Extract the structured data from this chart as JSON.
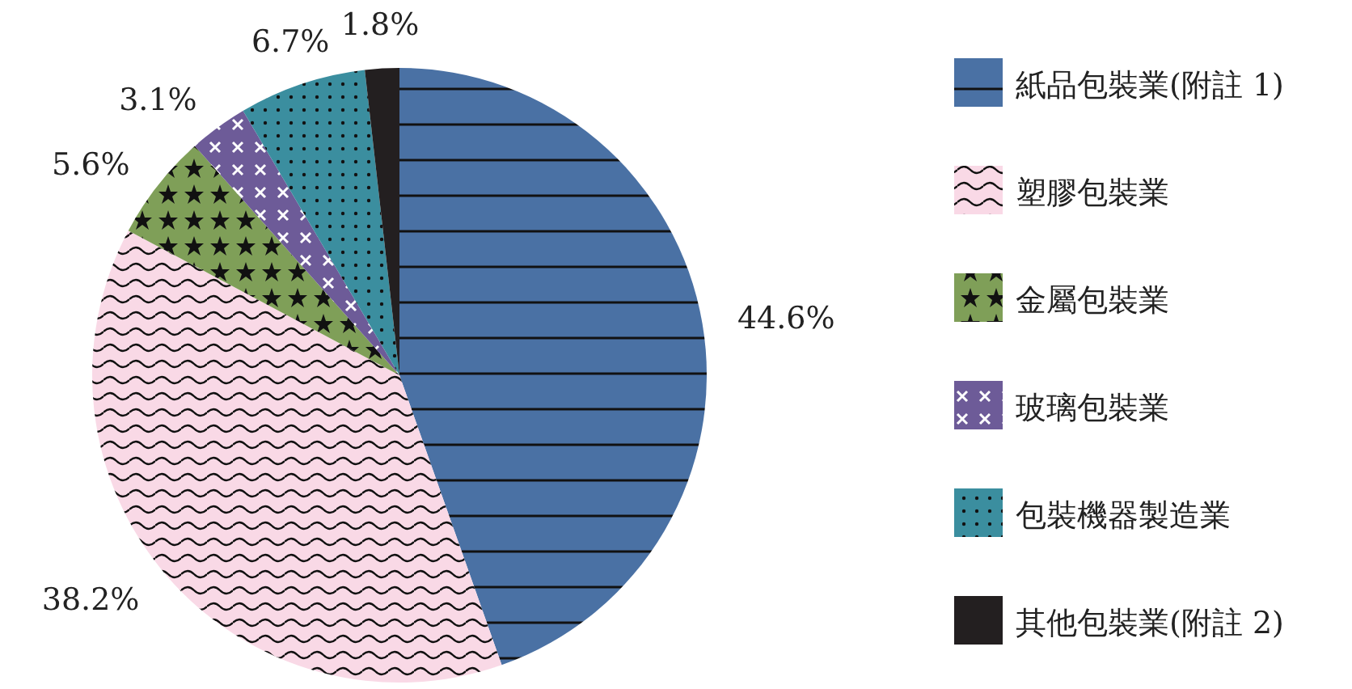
{
  "chart_data": {
    "type": "pie",
    "categories": [
      "紙品包裝業(附註 1)",
      "塑膠包裝業",
      "金屬包裝業",
      "玻璃包裝業",
      "包裝機器製造業",
      "其他包裝業(附註 2)"
    ],
    "values": [
      44.6,
      38.2,
      5.6,
      3.1,
      6.7,
      1.8
    ],
    "value_labels": [
      "44.6%",
      "38.2%",
      "5.6%",
      "3.1%",
      "6.7%",
      "1.8%"
    ],
    "colors": [
      "#4a71a4",
      "#f9d9e6",
      "#7f9f58",
      "#6d5b98",
      "#3b8e9f",
      "#231f20"
    ],
    "legend": "right"
  }
}
